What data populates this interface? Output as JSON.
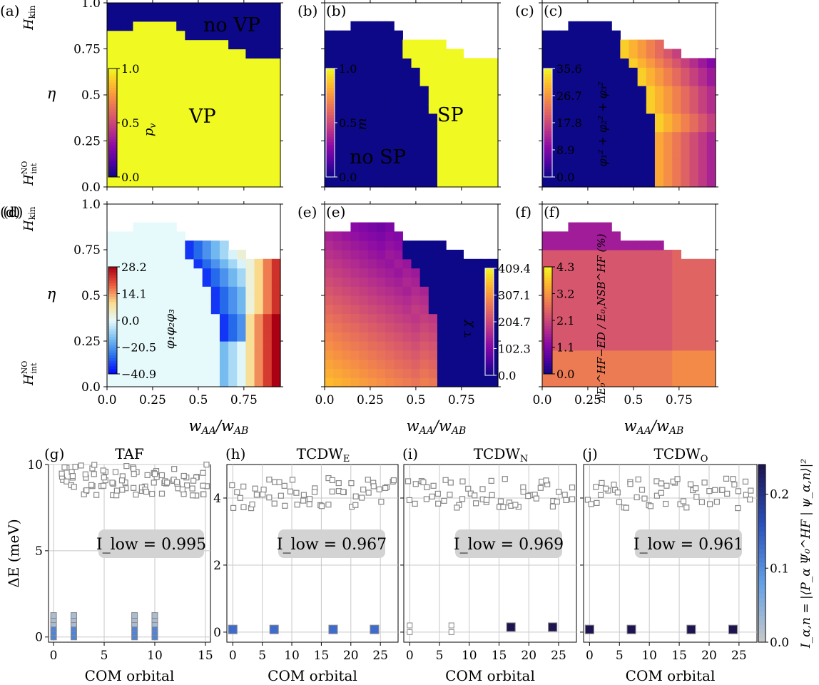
{
  "chart_data": [
    {
      "type": "heatmap",
      "panel_label": "(a)",
      "annotations": [
        "no VP",
        "VP"
      ],
      "xticks": [
        "0.0",
        "0.25",
        "0.5",
        "0.75"
      ],
      "yticks": [
        "0.0",
        "0.25",
        "0.5",
        "0.75",
        "1.0"
      ],
      "ylabel": "η",
      "y_top_label": "H",
      "y_top_sub": "kin",
      "y_bottom_label": "H",
      "y_bottom_sup": "NO",
      "y_bottom_sub": "int",
      "colorbar": {
        "label": "p",
        "label_sub": "v",
        "ticks": [
          "0.0",
          "0.5",
          "1.0"
        ],
        "range": [
          0,
          1
        ],
        "scale": "plasma"
      },
      "x_range": [
        0,
        0.95
      ],
      "y_range": [
        0,
        1
      ],
      "regions": {
        "boundary_top_by_column": [
          0.85,
          0.85,
          0.85,
          0.88,
          0.9,
          0.9,
          0.88,
          0.88,
          0.85,
          0.82,
          0.82,
          0.82,
          0.8,
          0.8,
          0.75,
          0.75,
          0.72,
          0.72,
          0.68,
          0.68
        ],
        "upper_value": 0.0,
        "lower_value": 1.0
      }
    },
    {
      "type": "heatmap",
      "panel_label": "(b)",
      "annotations": [
        "no SP",
        "SP"
      ],
      "xticks": [
        "0.0",
        "0.25",
        "0.5",
        "0.75"
      ],
      "yticks": [
        "0.0",
        "0.25",
        "0.5",
        "0.75",
        "1.0"
      ],
      "colorbar": {
        "label": "m",
        "ticks": [
          "0.0",
          "0.5",
          "1.0"
        ],
        "range": [
          0,
          1
        ],
        "scale": "plasma"
      }
    },
    {
      "type": "heatmap",
      "panel_label": "(c)",
      "colorbar": {
        "label": "φ₁² + φ₂² + φ₃²",
        "ticks": [
          "0.0",
          "8.9",
          "17.8",
          "26.7",
          "35.6"
        ],
        "range": [
          0,
          35.6
        ],
        "scale": "plasma"
      }
    },
    {
      "type": "heatmap",
      "panel_label": "(d)",
      "xlabel": "w_AA/w_AB",
      "colorbar": {
        "label": "φ₁φ₂φ₃",
        "ticks": [
          "−40.9",
          "−20.5",
          "0.0",
          "14.1",
          "28.2"
        ],
        "range": [
          -40.9,
          28.2
        ],
        "scale": "diverging"
      }
    },
    {
      "type": "heatmap",
      "panel_label": "(e)",
      "xlabel": "w_AA/w_AB",
      "colorbar": {
        "label": "τ χ",
        "ticks": [
          "0.0",
          "102.3",
          "204.7",
          "307.1",
          "409.4"
        ],
        "range": [
          0,
          409.4
        ],
        "scale": "plasma"
      }
    },
    {
      "type": "heatmap",
      "panel_label": "(f)",
      "xlabel": "w_AA/w_AB",
      "colorbar": {
        "label": "ΔE₀^HF−ED / E₀,NSB^HF (%)",
        "ticks": [
          "0.0",
          "1.1",
          "2.1",
          "3.2",
          "4.3"
        ],
        "range": [
          0,
          4.3
        ],
        "scale": "plasma"
      }
    },
    {
      "type": "scatter",
      "panel_label": "(g)",
      "title": "TAF",
      "xlabel": "COM orbital",
      "ylabel": "ΔE (meV)",
      "xticks": [
        "0",
        "5",
        "10",
        "15"
      ],
      "yticks": [
        "0",
        "5",
        "10"
      ],
      "x_range": [
        -0.5,
        15.5
      ],
      "y_range": [
        -0.3,
        10
      ],
      "annotation": "I_low = 0.995",
      "low_states_x": [
        0,
        2,
        8,
        10
      ],
      "high_band": [
        8.2,
        10
      ]
    },
    {
      "type": "scatter",
      "panel_label": "(h)",
      "title": "TCDW",
      "title_sub": "E",
      "xlabel": "COM orbital",
      "xticks": [
        "0",
        "5",
        "10",
        "15",
        "20",
        "25"
      ],
      "yticks": [
        "0",
        "2",
        "4"
      ],
      "x_range": [
        -1,
        28
      ],
      "y_range": [
        -0.3,
        5
      ],
      "annotation": "I_low = 0.967",
      "low_states_x": [
        0,
        7,
        17,
        24
      ],
      "high_band": [
        3.7,
        4.6
      ]
    },
    {
      "type": "scatter",
      "panel_label": "(i)",
      "title": "TCDW",
      "title_sub": "N",
      "xlabel": "COM orbital",
      "xticks": [
        "0",
        "5",
        "10",
        "15",
        "20",
        "25"
      ],
      "x_range": [
        -1,
        28
      ],
      "y_range": [
        -0.3,
        5
      ],
      "annotation": "I_low = 0.969",
      "low_states_x": [
        0,
        7,
        17,
        24
      ],
      "high_band": [
        3.7,
        4.6
      ]
    },
    {
      "type": "scatter",
      "panel_label": "(j)",
      "title": "TCDW",
      "title_sub": "O",
      "xlabel": "COM orbital",
      "xticks": [
        "0",
        "5",
        "10",
        "15",
        "20",
        "25"
      ],
      "x_range": [
        -1,
        28
      ],
      "y_range": [
        -0.3,
        5
      ],
      "annotation": "I_low = 0.961",
      "low_states_x": [
        0,
        7,
        17,
        24
      ],
      "high_band": [
        3.7,
        4.6
      ],
      "colorbar": {
        "label": "I_α,n = |⟨P_α Ψ₀^HF | ψ_α,n⟩|²",
        "ticks": [
          "0.0",
          "0.1",
          "0.2"
        ],
        "range": [
          0,
          0.24
        ]
      }
    }
  ]
}
